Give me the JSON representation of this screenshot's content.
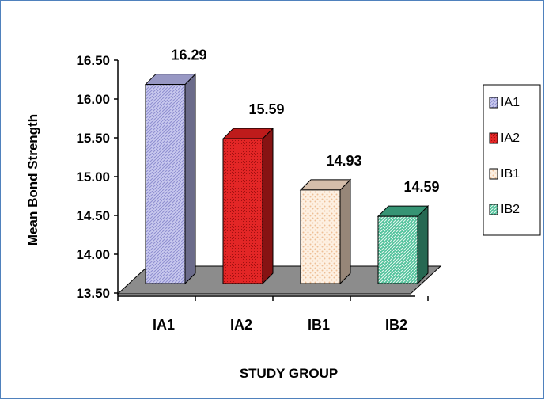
{
  "chart_data": {
    "type": "bar",
    "categories": [
      "IA1",
      "IA2",
      "IB1",
      "IB2"
    ],
    "values": [
      16.29,
      15.59,
      14.93,
      14.59
    ],
    "data_labels": [
      "16.29",
      "15.59",
      "14.93",
      "14.59"
    ],
    "xlabel": "STUDY GROUP",
    "ylabel": "Mean Bond Strength",
    "ylim": [
      13.5,
      16.5
    ],
    "yticks": [
      "13.50",
      "14.00",
      "14.50",
      "15.00",
      "15.50",
      "16.00",
      "16.50"
    ],
    "ytick_values": [
      13.5,
      14.0,
      14.5,
      15.0,
      15.5,
      16.0,
      16.5
    ],
    "style": "3d-column",
    "grid": false,
    "legend_position": "right",
    "legend": [
      "IA1",
      "IA2",
      "IB1",
      "IB2"
    ],
    "colors": [
      "#b3b3e6",
      "#e02020",
      "#fae0c8",
      "#3fae88"
    ],
    "floor_color": "#8c8c8c"
  }
}
